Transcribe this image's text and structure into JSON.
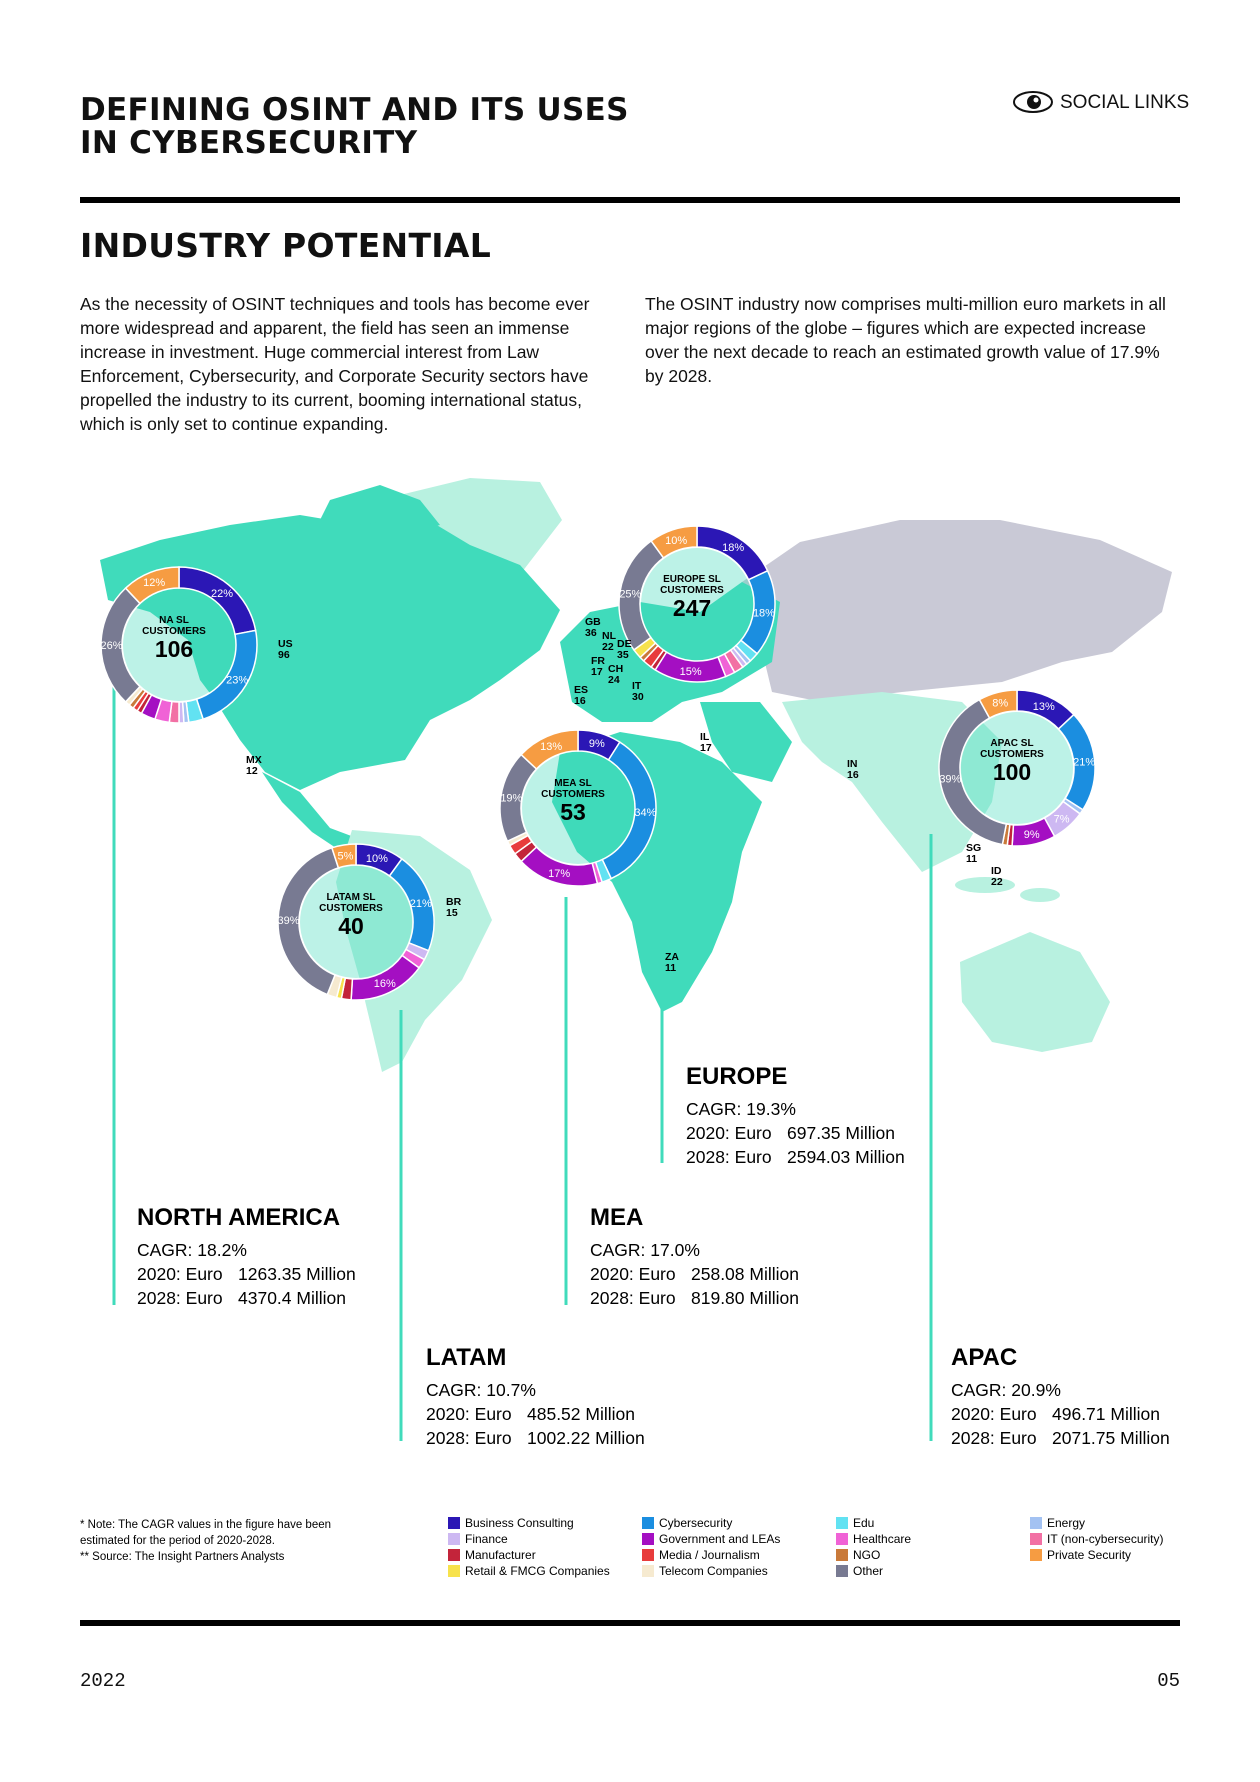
{
  "header": {
    "title_lines": [
      "DEFINING OSINT AND ITS USES",
      "IN CYBERSECURITY"
    ],
    "brand": "SOCIAL LINKS"
  },
  "section": {
    "title": "INDUSTRY POTENTIAL",
    "paragraphs": [
      "As the necessity of OSINT techniques and tools has become ever more widespread and apparent, the field has seen an immense increase in investment. Huge commercial interest from Law Enforcement, Cybersecurity, and Corporate Security sectors have propelled the industry to its current, booming international status, which is only set to continue expanding.",
      "The OSINT industry now comprises multi-million euro markets in all major regions of the globe – figures which are expected increase over the next decade to reach an estimated growth value of 17.9% by 2028."
    ]
  },
  "legend": [
    {
      "name": "Business Consulting",
      "color": "#2b17b5"
    },
    {
      "name": "Finance",
      "color": "#cdb8f2"
    },
    {
      "name": "Manufacturer",
      "color": "#c3243a"
    },
    {
      "name": "Retail & FMCG Companies",
      "color": "#f7e24c"
    },
    {
      "name": "Cybersecurity",
      "color": "#1b8ee0"
    },
    {
      "name": "Government and LEAs",
      "color": "#a40fc2"
    },
    {
      "name": "Media / Journalism",
      "color": "#e83c3c"
    },
    {
      "name": "Telecom Companies",
      "color": "#f6ead0"
    },
    {
      "name": "Edu",
      "color": "#62e2f2"
    },
    {
      "name": "Healthcare",
      "color": "#f062d6"
    },
    {
      "name": "NGO",
      "color": "#c97a3a"
    },
    {
      "name": "Other",
      "color": "#787a92"
    },
    {
      "name": "Energy",
      "color": "#a3c2f2"
    },
    {
      "name": "IT (non-cybersecurity)",
      "color": "#f270a4"
    },
    {
      "name": "Private Security",
      "color": "#f69c42"
    }
  ],
  "donuts": [
    {
      "region": "NA SL",
      "caption": "CUSTOMERS",
      "total": 106,
      "values": [
        22,
        1,
        1,
        0,
        23,
        3,
        1,
        1,
        3,
        3,
        1,
        26,
        1,
        2,
        12
      ],
      "value_labels": [
        "22%",
        null,
        null,
        null,
        "23%",
        null,
        null,
        null,
        null,
        null,
        null,
        "26%",
        null,
        null,
        "12%"
      ]
    },
    {
      "region": "EUROPE SL",
      "caption": "CUSTOMERS",
      "total": 247,
      "values": [
        18,
        1,
        1,
        2,
        18,
        15,
        2,
        0,
        2,
        2,
        1,
        25,
        1,
        2,
        10
      ],
      "value_labels": [
        "18%",
        null,
        null,
        null,
        "18%",
        "15%",
        null,
        null,
        null,
        null,
        null,
        "25%",
        null,
        null,
        "10%"
      ]
    },
    {
      "region": "MEA SL",
      "caption": "CUSTOMERS",
      "total": 53,
      "values": [
        9,
        0,
        2,
        0,
        34,
        17,
        2,
        1,
        2,
        1,
        0,
        19,
        0,
        0,
        13
      ],
      "value_labels": [
        "9%",
        null,
        null,
        null,
        "34%",
        "17%",
        null,
        null,
        null,
        null,
        null,
        "19%",
        null,
        null,
        "13%"
      ]
    },
    {
      "region": "LATAM SL",
      "caption": "CUSTOMERS",
      "total": 40,
      "values": [
        10,
        2,
        2,
        1,
        21,
        16,
        0,
        2,
        0,
        2,
        0,
        39,
        0,
        0,
        5
      ],
      "value_labels": [
        "10%",
        null,
        null,
        null,
        "21%",
        "16%",
        null,
        null,
        null,
        null,
        null,
        "39%",
        null,
        null,
        "5%"
      ]
    },
    {
      "region": "APAC SL",
      "caption": "CUSTOMERS",
      "total": 100,
      "values": [
        13,
        7,
        1,
        0,
        21,
        9,
        0,
        0,
        0,
        0,
        1,
        39,
        1,
        0,
        8
      ],
      "value_labels": [
        "13%",
        "7%",
        null,
        null,
        "21%",
        "9%",
        null,
        null,
        null,
        null,
        null,
        "39%",
        null,
        null,
        "8%"
      ]
    }
  ],
  "countries": [
    {
      "code": "US",
      "value": 96
    },
    {
      "code": "MX",
      "value": 12
    },
    {
      "code": "BR",
      "value": 15
    },
    {
      "code": "GB",
      "value": 36
    },
    {
      "code": "NL",
      "value": 22
    },
    {
      "code": "DE",
      "value": 35
    },
    {
      "code": "FR",
      "value": 17
    },
    {
      "code": "CH",
      "value": 24
    },
    {
      "code": "ES",
      "value": 16
    },
    {
      "code": "IT",
      "value": 30
    },
    {
      "code": "IL",
      "value": 17
    },
    {
      "code": "IN",
      "value": 16
    },
    {
      "code": "SG",
      "value": 11
    },
    {
      "code": "ID",
      "value": 22
    },
    {
      "code": "ZA",
      "value": 11
    }
  ],
  "regions": [
    {
      "name": "NORTH AMERICA",
      "cagr": "CAGR: 18.2%",
      "rows": [
        [
          "2020: Euro",
          "1263.35 Million"
        ],
        [
          "2028: Euro",
          "4370.4 Million"
        ]
      ]
    },
    {
      "name": "EUROPE",
      "cagr": "CAGR: 19.3%",
      "rows": [
        [
          "2020: Euro",
          "697.35 Million"
        ],
        [
          "2028: Euro",
          "2594.03 Million"
        ]
      ]
    },
    {
      "name": "MEA",
      "cagr": "CAGR: 17.0%",
      "rows": [
        [
          "2020: Euro",
          "258.08 Million"
        ],
        [
          "2028: Euro",
          "819.80 Million"
        ]
      ]
    },
    {
      "name": "LATAM",
      "cagr": "CAGR: 10.7%",
      "rows": [
        [
          "2020: Euro",
          "485.52 Million"
        ],
        [
          "2028: Euro",
          "1002.22 Million"
        ]
      ]
    },
    {
      "name": "APAC",
      "cagr": "CAGR: 20.9%",
      "rows": [
        [
          "2020: Euro",
          "496.71 Million"
        ],
        [
          "2028: Euro",
          "2071.75 Million"
        ]
      ]
    }
  ],
  "notes": [
    "* Note: The CAGR values in the figure have been",
    "estimated for the period of 2020-2028.",
    "** Source: The Insight Partners Analysts"
  ],
  "footer": {
    "year": "2022",
    "page": "05"
  }
}
